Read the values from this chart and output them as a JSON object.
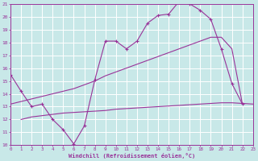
{
  "background_color": "#c8e8e8",
  "grid_color": "#ffffff",
  "line_color": "#993399",
  "xlabel": "Windchill (Refroidissement éolien,°C)",
  "xlim": [
    0,
    23
  ],
  "ylim": [
    10,
    21
  ],
  "xticks": [
    0,
    1,
    2,
    3,
    4,
    5,
    6,
    7,
    8,
    9,
    10,
    11,
    12,
    13,
    14,
    15,
    16,
    17,
    18,
    19,
    20,
    21,
    22,
    23
  ],
  "yticks": [
    10,
    11,
    12,
    13,
    14,
    15,
    16,
    17,
    18,
    19,
    20,
    21
  ],
  "line1_x": [
    0,
    1,
    2,
    3,
    4,
    5,
    6,
    7,
    8,
    9,
    10,
    11,
    12,
    13,
    14,
    15,
    16,
    17,
    18,
    19,
    20,
    21,
    22
  ],
  "line1_y": [
    15.5,
    14.2,
    13.0,
    13.2,
    12.0,
    11.2,
    10.1,
    11.5,
    15.1,
    18.1,
    18.1,
    17.5,
    18.1,
    19.5,
    20.1,
    20.2,
    21.2,
    21.0,
    20.5,
    19.8,
    17.5,
    14.8,
    13.2
  ],
  "line2_x": [
    0,
    1,
    2,
    3,
    4,
    5,
    6,
    7,
    8,
    9,
    10,
    11,
    12,
    13,
    14,
    15,
    16,
    17,
    18,
    19,
    20,
    21,
    22
  ],
  "line2_y": [
    13.2,
    13.4,
    13.6,
    13.8,
    14.0,
    14.2,
    14.4,
    14.7,
    15.0,
    15.4,
    15.7,
    16.0,
    16.3,
    16.6,
    16.9,
    17.2,
    17.5,
    17.8,
    18.1,
    18.4,
    18.4,
    17.5,
    13.2
  ],
  "line3_x": [
    1,
    2,
    3,
    4,
    5,
    6,
    7,
    8,
    9,
    10,
    11,
    12,
    13,
    14,
    15,
    16,
    17,
    18,
    19,
    20,
    21,
    22,
    23
  ],
  "line3_y": [
    12.0,
    12.2,
    12.3,
    12.4,
    12.5,
    12.55,
    12.6,
    12.65,
    12.7,
    12.8,
    12.85,
    12.9,
    12.95,
    13.0,
    13.05,
    13.1,
    13.15,
    13.2,
    13.25,
    13.3,
    13.3,
    13.25,
    13.2
  ]
}
